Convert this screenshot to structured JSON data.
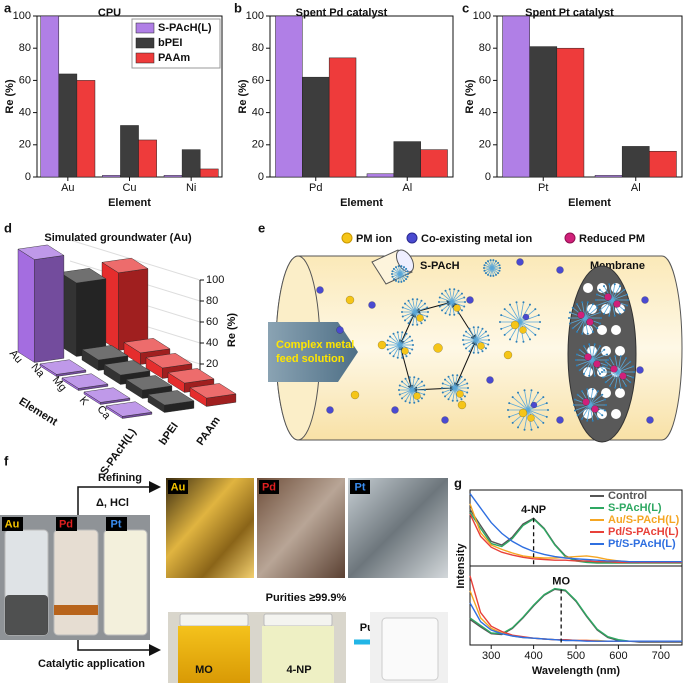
{
  "chart_data": [
    {
      "type": "bar",
      "panel": "a",
      "title": "CPU",
      "categories": [
        "Au",
        "Cu",
        "Ni"
      ],
      "series": [
        {
          "name": "S-PAcH(L)",
          "color": "#b07fe6",
          "values": [
            100,
            1,
            1
          ]
        },
        {
          "name": "bPEI",
          "color": "#3d3d3d",
          "values": [
            64,
            32,
            17
          ]
        },
        {
          "name": "PAAm",
          "color": "#ee3b3b",
          "values": [
            60,
            23,
            5
          ]
        }
      ],
      "ylim": [
        0,
        100
      ],
      "yticks": [
        0,
        20,
        40,
        60,
        80,
        100
      ],
      "ylabel": "Re (%)",
      "xlabel": "Element",
      "legend": "upper right"
    },
    {
      "type": "bar",
      "panel": "b",
      "title": "Spent Pd catalyst",
      "categories": [
        "Pd",
        "Al"
      ],
      "series": [
        {
          "color": "#b07fe6",
          "values": [
            100,
            2
          ]
        },
        {
          "color": "#3d3d3d",
          "values": [
            62,
            22
          ]
        },
        {
          "color": "#ee3b3b",
          "values": [
            74,
            17
          ]
        }
      ],
      "ylim": [
        0,
        100
      ],
      "yticks": [
        0,
        20,
        40,
        60,
        80,
        100
      ],
      "ylabel": "Re (%)",
      "xlabel": "Element"
    },
    {
      "type": "bar",
      "panel": "c",
      "title": "Spent Pt catalyst",
      "categories": [
        "Pt",
        "Al"
      ],
      "series": [
        {
          "color": "#b07fe6",
          "values": [
            100,
            1
          ]
        },
        {
          "color": "#3d3d3d",
          "values": [
            81,
            19
          ]
        },
        {
          "color": "#ee3b3b",
          "values": [
            80,
            16
          ]
        }
      ],
      "ylim": [
        0,
        100
      ],
      "yticks": [
        0,
        20,
        40,
        60,
        80,
        100
      ],
      "ylabel": "Re (%)",
      "xlabel": "Element"
    },
    {
      "type": "bar3d",
      "panel": "d",
      "title": "Simulated groundwater (Au)",
      "categories": [
        "Au",
        "Na",
        "Mg",
        "K",
        "Ca"
      ],
      "series": [
        {
          "name": "S-PAcH(L)",
          "color": "#a46de0",
          "values": [
            98,
            2,
            2,
            2,
            2
          ]
        },
        {
          "name": "bPEI",
          "color": "#333333",
          "values": [
            70,
            10,
            9,
            8,
            7
          ]
        },
        {
          "name": "PAAm",
          "color": "#e52d2d",
          "values": [
            74,
            11,
            10,
            9,
            8
          ]
        }
      ],
      "zlim": [
        0,
        100
      ],
      "zticks": [
        0,
        20,
        40,
        60,
        80,
        100
      ],
      "zlabel": "Re (%)",
      "xlabel": "Element"
    },
    {
      "type": "line",
      "panel": "g",
      "x": [
        250,
        275,
        300,
        325,
        350,
        375,
        400,
        425,
        450,
        475,
        500,
        525,
        550,
        575,
        600,
        625,
        650,
        675,
        700,
        725,
        750
      ],
      "xlim": [
        250,
        750
      ],
      "ylim": [
        0,
        1.05
      ],
      "ylabel": "Intensity",
      "legend": "upper right",
      "annotation": {
        "text": "4-NP",
        "x": 400
      },
      "series": [
        {
          "name": "Control",
          "color": "#555555",
          "values": [
            0.78,
            0.56,
            0.34,
            0.29,
            0.4,
            0.58,
            0.66,
            0.52,
            0.3,
            0.14,
            0.08,
            0.06,
            0.05,
            0.05,
            0.05,
            0.05,
            0.05,
            0.05,
            0.05,
            0.05,
            0.05
          ]
        },
        {
          "name": "S-PAcH(L)",
          "color": "#2ea862",
          "values": [
            0.74,
            0.52,
            0.31,
            0.27,
            0.38,
            0.56,
            0.65,
            0.51,
            0.29,
            0.13,
            0.07,
            0.05,
            0.04,
            0.04,
            0.04,
            0.04,
            0.04,
            0.04,
            0.04,
            0.04,
            0.04
          ]
        },
        {
          "name": "Au/S-PAcH(L)",
          "color": "#f5a623",
          "values": [
            0.86,
            0.46,
            0.29,
            0.23,
            0.18,
            0.14,
            0.12,
            0.11,
            0.11,
            0.12,
            0.13,
            0.14,
            0.12,
            0.09,
            0.07,
            0.06,
            0.05,
            0.05,
            0.05,
            0.05,
            0.05
          ]
        },
        {
          "name": "Pd/S-PAcH(L)",
          "color": "#e8413a",
          "values": [
            0.72,
            0.41,
            0.26,
            0.19,
            0.15,
            0.12,
            0.1,
            0.09,
            0.08,
            0.08,
            0.07,
            0.07,
            0.06,
            0.06,
            0.05,
            0.05,
            0.05,
            0.05,
            0.05,
            0.05,
            0.05
          ]
        },
        {
          "name": "Pt/S-PAcH(L)",
          "color": "#2f6fe0",
          "values": [
            1.0,
            0.8,
            0.6,
            0.45,
            0.34,
            0.26,
            0.2,
            0.16,
            0.13,
            0.11,
            0.1,
            0.09,
            0.08,
            0.07,
            0.07,
            0.06,
            0.06,
            0.06,
            0.06,
            0.06,
            0.06
          ]
        }
      ]
    },
    {
      "type": "line",
      "x": [
        250,
        275,
        300,
        325,
        350,
        375,
        400,
        425,
        450,
        475,
        500,
        525,
        550,
        575,
        600,
        625,
        650,
        675,
        700,
        725,
        750
      ],
      "xlim": [
        250,
        750
      ],
      "xticks": [
        300,
        400,
        500,
        600,
        700
      ],
      "ylim": [
        0,
        1.05
      ],
      "xlabel": "Wavelength (nm)",
      "annotation": {
        "text": "MO",
        "x": 465
      },
      "series": [
        {
          "color": "#555555",
          "values": [
            0.34,
            0.24,
            0.15,
            0.14,
            0.22,
            0.36,
            0.52,
            0.66,
            0.74,
            0.72,
            0.58,
            0.38,
            0.2,
            0.1,
            0.06,
            0.05,
            0.04,
            0.04,
            0.04,
            0.04,
            0.04
          ]
        },
        {
          "color": "#2ea862",
          "values": [
            0.36,
            0.26,
            0.16,
            0.15,
            0.23,
            0.37,
            0.53,
            0.67,
            0.75,
            0.73,
            0.59,
            0.39,
            0.21,
            0.11,
            0.07,
            0.05,
            0.05,
            0.05,
            0.05,
            0.05,
            0.05
          ]
        },
        {
          "color": "#f5a623",
          "values": [
            0.72,
            0.36,
            0.22,
            0.16,
            0.12,
            0.1,
            0.09,
            0.08,
            0.07,
            0.07,
            0.06,
            0.06,
            0.06,
            0.05,
            0.05,
            0.05,
            0.05,
            0.05,
            0.05,
            0.05,
            0.05
          ]
        },
        {
          "color": "#e8413a",
          "values": [
            0.92,
            0.43,
            0.25,
            0.18,
            0.13,
            0.11,
            0.09,
            0.08,
            0.07,
            0.07,
            0.06,
            0.06,
            0.05,
            0.05,
            0.05,
            0.05,
            0.05,
            0.05,
            0.05,
            0.05,
            0.05
          ]
        },
        {
          "color": "#2f6fe0",
          "values": [
            0.56,
            0.31,
            0.2,
            0.15,
            0.12,
            0.1,
            0.09,
            0.08,
            0.07,
            0.06,
            0.06,
            0.05,
            0.05,
            0.05,
            0.05,
            0.05,
            0.05,
            0.05,
            0.05,
            0.05,
            0.05
          ]
        }
      ]
    }
  ],
  "diagram_e": {
    "panel": "e",
    "legend": [
      "PM ion",
      "Co-existing metal ion",
      "Reduced PM"
    ],
    "polymer": "S-PAcH",
    "membrane": "Membrane",
    "feed": [
      "Complex metal",
      "feed solution"
    ]
  },
  "photos_f": {
    "panel": "f",
    "vial_labels": [
      "Au",
      "Pd",
      "Pt"
    ],
    "photo_labels": [
      "Au",
      "Pd",
      "Pt"
    ],
    "refining": "Refining",
    "conditions": "Δ,  HCl",
    "purities": "Purities ≥99.9%",
    "catalytic": "Catalytic application",
    "dyes": [
      "MO",
      "4-NP"
    ],
    "purification": "Purification"
  }
}
